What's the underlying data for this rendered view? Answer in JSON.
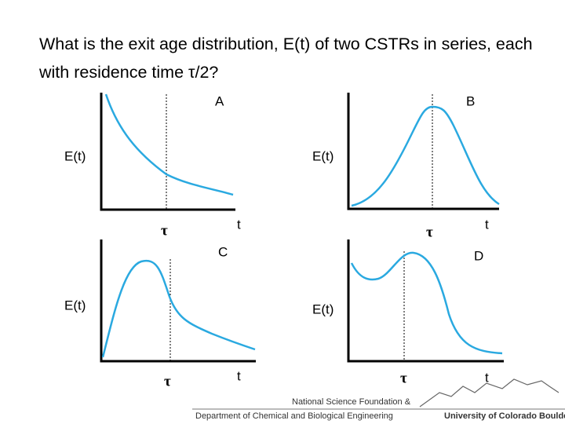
{
  "question": "What is the exit age distribution, E(t) of two CSTRs in series, each with residence time τ/2?",
  "panels": [
    {
      "label": "A",
      "y_label": "E(t)",
      "x_label": "t",
      "marker": "τ"
    },
    {
      "label": "B",
      "y_label": "E(t)",
      "x_label": "t",
      "marker": "τ"
    },
    {
      "label": "C",
      "y_label": "E(t)",
      "x_label": "t",
      "marker": "τ"
    },
    {
      "label": "D",
      "y_label": "E(t)",
      "x_label": "t",
      "marker": "τ"
    }
  ],
  "footer": {
    "line1": "National Science Foundation &",
    "line2": "Department of Chemical and Biological Engineering",
    "logo": "University of Colorado Boulder"
  }
}
